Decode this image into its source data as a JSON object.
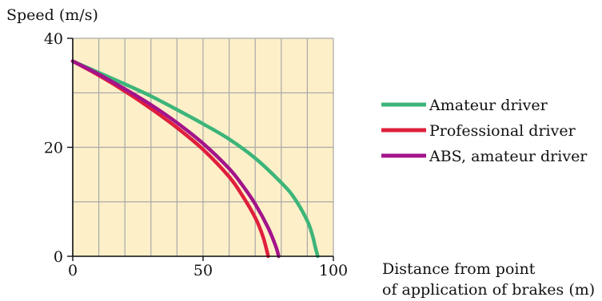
{
  "chart_data": {
    "type": "line",
    "title": "",
    "ylabel": "Speed (m/s)",
    "xlabel_lines": [
      "Distance from point",
      "of application of brakes (m)"
    ],
    "xlim": [
      0,
      100
    ],
    "ylim": [
      0,
      40
    ],
    "x_ticks": [
      0,
      50,
      100
    ],
    "y_ticks": [
      0,
      20,
      40
    ],
    "x_tick_labels": [
      "0",
      "50",
      "100"
    ],
    "y_tick_labels": [
      "0",
      "20",
      "40"
    ],
    "x_grid_step": 10,
    "y_grid_step": 10,
    "grid": true,
    "legend_position": "right",
    "plot_background": "#fdf0c8",
    "grid_color": "#a8a8a8",
    "series": [
      {
        "name": "Amateur driver",
        "color": "#3db57a",
        "x": [
          0,
          10,
          20,
          30,
          40,
          50,
          60,
          70,
          80,
          85,
          90,
          92,
          93,
          94
        ],
        "y": [
          35.8,
          33.7,
          31.6,
          29.4,
          26.9,
          24.3,
          21.5,
          18.0,
          13.5,
          10.7,
          6.5,
          3.8,
          1.8,
          0
        ]
      },
      {
        "name": "Professional driver",
        "color": "#e01f3d",
        "x": [
          0,
          10,
          20,
          30,
          40,
          50,
          60,
          65,
          70,
          73,
          75
        ],
        "y": [
          35.8,
          33.2,
          30.3,
          27.1,
          23.6,
          19.6,
          14.6,
          11.2,
          7.1,
          3.6,
          0
        ]
      },
      {
        "name": "ABS, amateur driver",
        "color": "#a3148a",
        "x": [
          0,
          10,
          20,
          30,
          40,
          50,
          60,
          65,
          70,
          75,
          78,
          79
        ],
        "y": [
          35.8,
          33.4,
          30.7,
          27.8,
          24.5,
          20.7,
          16.1,
          13.1,
          9.6,
          5.2,
          1.7,
          0
        ]
      }
    ]
  }
}
